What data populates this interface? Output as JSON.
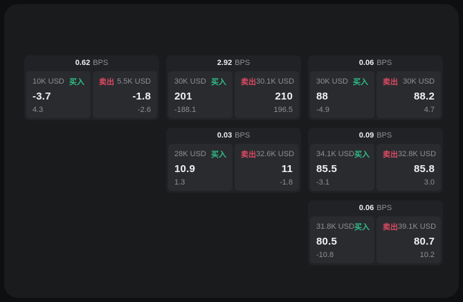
{
  "labels": {
    "buy": "买入",
    "sell": "卖出",
    "bps_unit": "BPS"
  },
  "colors": {
    "buy_green": "#2ebd85",
    "sell_red": "#d94a63",
    "panel_bg": "#1a1b1d",
    "card_bg": "#212226",
    "tile_bg": "#2a2b2e"
  },
  "cards": [
    {
      "row": 1,
      "col": 1,
      "bps": "0.62",
      "buy": {
        "amount": "10K USD",
        "price": "-3.7",
        "delta": "4.3"
      },
      "sell": {
        "amount": "5.5K USD",
        "price": "-1.8",
        "delta": "-2.6"
      }
    },
    {
      "row": 1,
      "col": 2,
      "bps": "2.92",
      "buy": {
        "amount": "30K USD",
        "price": "201",
        "delta": "-188.1"
      },
      "sell": {
        "amount": "30.1K USD",
        "price": "210",
        "delta": "196.5"
      }
    },
    {
      "row": 1,
      "col": 3,
      "bps": "0.06",
      "buy": {
        "amount": "30K USD",
        "price": "88",
        "delta": "-4.9"
      },
      "sell": {
        "amount": "30K USD",
        "price": "88.2",
        "delta": "4.7"
      }
    },
    {
      "row": 2,
      "col": 2,
      "bps": "0.03",
      "buy": {
        "amount": "28K USD",
        "price": "10.9",
        "delta": "1.3"
      },
      "sell": {
        "amount": "32.6K USD",
        "price": "11",
        "delta": "-1.8"
      }
    },
    {
      "row": 2,
      "col": 3,
      "bps": "0.09",
      "buy": {
        "amount": "34.1K USD",
        "price": "85.5",
        "delta": "-3.1"
      },
      "sell": {
        "amount": "32.8K USD",
        "price": "85.8",
        "delta": "3.0"
      }
    },
    {
      "row": 3,
      "col": 3,
      "bps": "0.06",
      "buy": {
        "amount": "31.8K USD",
        "price": "80.5",
        "delta": "-10.8"
      },
      "sell": {
        "amount": "39.1K USD",
        "price": "80.7",
        "delta": "10.2"
      }
    }
  ]
}
